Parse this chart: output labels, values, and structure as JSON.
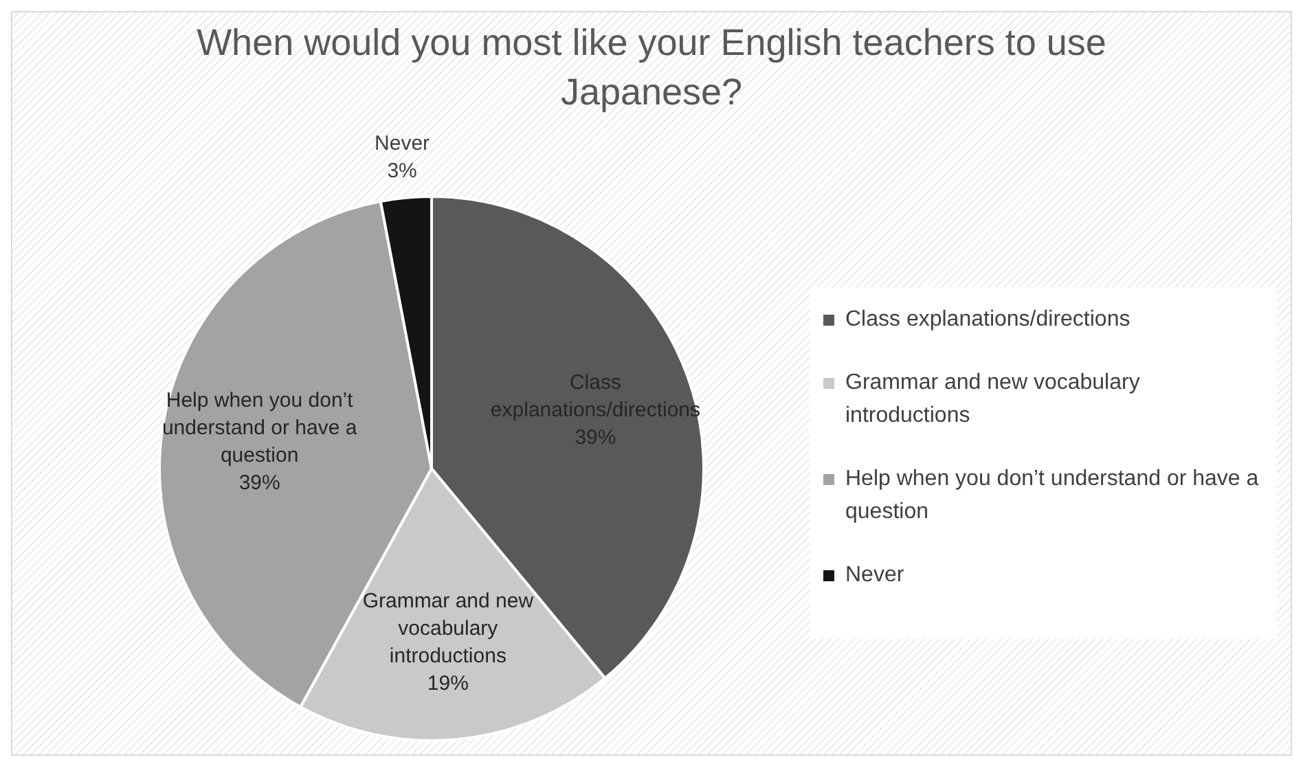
{
  "chart_data": {
    "type": "pie",
    "title": "When would you most like your English teachers to use Japanese?",
    "categories": [
      "Class explanations/directions",
      "Grammar and new vocabulary introductions",
      "Help when you don’t understand or have a question",
      "Never"
    ],
    "values": [
      39,
      19,
      39,
      3
    ],
    "colors": [
      "#595959",
      "#c9c9c9",
      "#a3a3a3",
      "#141414"
    ],
    "value_labels": [
      "39%",
      "19%",
      "39%",
      "3%"
    ],
    "legend": "right"
  }
}
